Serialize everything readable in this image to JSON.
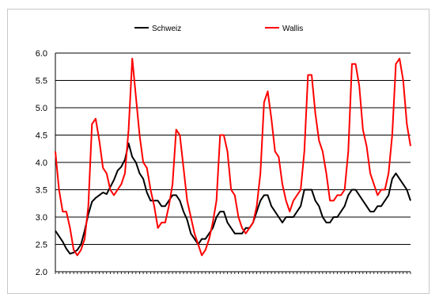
{
  "chart_data": {
    "type": "line",
    "title": "",
    "xlabel": "",
    "ylabel": "",
    "ylim": [
      2.0,
      6.0
    ],
    "yticks": [
      "2.0",
      "2.5",
      "3.0",
      "3.5",
      "4.0",
      "4.5",
      "5.0",
      "5.5",
      "6.0"
    ],
    "grid": "horizontal",
    "legend_position": "top",
    "series": [
      {
        "name": "Schweiz",
        "color": "#000000",
        "values": [
          2.75,
          2.65,
          2.55,
          2.42,
          2.33,
          2.35,
          2.4,
          2.5,
          2.75,
          3.05,
          3.28,
          3.35,
          3.4,
          3.45,
          3.42,
          3.55,
          3.68,
          3.85,
          3.92,
          4.05,
          4.35,
          4.1,
          4.0,
          3.8,
          3.7,
          3.45,
          3.3,
          3.3,
          3.3,
          3.2,
          3.2,
          3.3,
          3.4,
          3.4,
          3.3,
          3.1,
          2.95,
          2.7,
          2.6,
          2.5,
          2.6,
          2.6,
          2.7,
          2.8,
          3.0,
          3.1,
          3.1,
          2.9,
          2.8,
          2.7,
          2.7,
          2.7,
          2.8,
          2.8,
          2.9,
          3.1,
          3.3,
          3.4,
          3.4,
          3.2,
          3.1,
          3.0,
          2.9,
          3.0,
          3.0,
          3.0,
          3.1,
          3.2,
          3.5,
          3.5,
          3.5,
          3.3,
          3.2,
          3.0,
          2.9,
          2.9,
          3.0,
          3.0,
          3.1,
          3.2,
          3.4,
          3.5,
          3.5,
          3.4,
          3.3,
          3.2,
          3.1,
          3.1,
          3.2,
          3.2,
          3.3,
          3.4,
          3.7,
          3.8,
          3.7,
          3.6,
          3.5,
          3.3
        ]
      },
      {
        "name": "Wallis",
        "color": "#ff0000",
        "values": [
          4.2,
          3.5,
          3.1,
          3.1,
          2.8,
          2.4,
          2.3,
          2.4,
          2.6,
          3.2,
          4.7,
          4.8,
          4.4,
          3.9,
          3.8,
          3.5,
          3.4,
          3.5,
          3.6,
          3.8,
          4.6,
          5.9,
          5.2,
          4.5,
          4.0,
          3.9,
          3.5,
          3.2,
          2.8,
          2.9,
          2.9,
          3.2,
          3.6,
          4.6,
          4.5,
          3.9,
          3.3,
          3.0,
          2.7,
          2.5,
          2.3,
          2.4,
          2.6,
          2.9,
          3.3,
          4.5,
          4.5,
          4.2,
          3.5,
          3.4,
          3.0,
          2.8,
          2.7,
          2.8,
          2.9,
          3.2,
          3.8,
          5.1,
          5.3,
          4.8,
          4.2,
          4.1,
          3.6,
          3.3,
          3.1,
          3.3,
          3.4,
          3.5,
          4.2,
          5.6,
          5.6,
          4.9,
          4.4,
          4.2,
          3.8,
          3.3,
          3.3,
          3.4,
          3.4,
          3.5,
          4.2,
          5.8,
          5.8,
          5.4,
          4.6,
          4.3,
          3.8,
          3.6,
          3.4,
          3.5,
          3.5,
          3.8,
          4.5,
          5.8,
          5.9,
          5.5,
          4.7,
          4.3
        ]
      }
    ]
  }
}
